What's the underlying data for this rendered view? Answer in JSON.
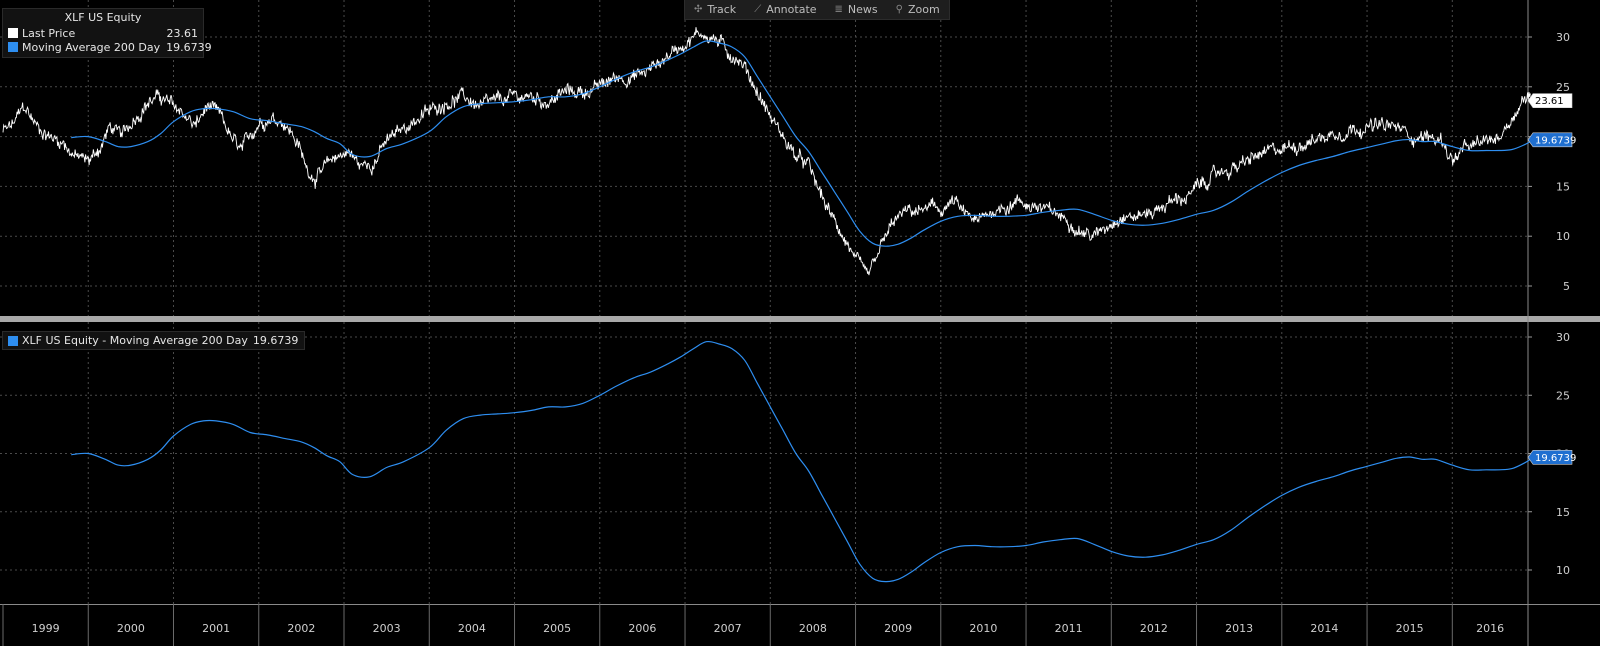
{
  "toolbar": {
    "items": [
      {
        "label": "Track",
        "icon": "crosshair-icon",
        "glyph": "✣"
      },
      {
        "label": "Annotate",
        "icon": "pencil-icon",
        "glyph": "⟋"
      },
      {
        "label": "News",
        "icon": "news-icon",
        "glyph": "≣"
      },
      {
        "label": "Zoom",
        "icon": "magnifier-icon",
        "glyph": "⚲"
      }
    ]
  },
  "legend_top": {
    "title": "XLF US Equity",
    "rows": [
      {
        "name": "Last Price",
        "value": "23.61",
        "color": "#ffffff"
      },
      {
        "name": "Moving Average 200 Day",
        "value": "19.6739",
        "color": "#2e8ef0"
      }
    ]
  },
  "legend_bottom": {
    "name": "XLF US Equity - Moving Average 200 Day",
    "value": "19.6739",
    "color": "#2e8ef0"
  },
  "colors": {
    "price": "#ffffff",
    "ma": "#2e8ef0",
    "grid": "#4a4a4a",
    "background": "#000000"
  },
  "chart_data": [
    {
      "type": "line",
      "panel": "top",
      "x_unit": "year",
      "x_ticks": [
        "1999",
        "2000",
        "2001",
        "2002",
        "2003",
        "2004",
        "2005",
        "2006",
        "2007",
        "2008",
        "2009",
        "2010",
        "2011",
        "2012",
        "2013",
        "2014",
        "2015",
        "2016"
      ],
      "xlim": [
        1999.0,
        2016.97
      ],
      "y_ticks": [
        5,
        10,
        15,
        20,
        25,
        30
      ],
      "ylim": [
        2.5,
        33
      ],
      "grid": true,
      "last_value_tags": [
        {
          "value": "23.61",
          "series": "Last Price"
        },
        {
          "value": "19.6739",
          "series": "Moving Average 200 Day"
        }
      ],
      "series": [
        {
          "name": "Last Price",
          "color": "#ffffff",
          "style": "noisy",
          "x": [
            1999.0,
            1999.1,
            1999.25,
            1999.4,
            1999.55,
            1999.7,
            1999.85,
            2000.0,
            2000.15,
            2000.25,
            2000.4,
            2000.55,
            2000.7,
            2000.85,
            2001.0,
            2001.1,
            2001.25,
            2001.4,
            2001.55,
            2001.7,
            2001.8,
            2002.0,
            2002.15,
            2002.3,
            2002.45,
            2002.55,
            2002.65,
            2002.75,
            2002.9,
            2003.05,
            2003.2,
            2003.35,
            2003.5,
            2003.65,
            2003.8,
            2004.0,
            2004.2,
            2004.4,
            2004.6,
            2004.8,
            2005.0,
            2005.2,
            2005.4,
            2005.6,
            2005.8,
            2006.0,
            2006.2,
            2006.4,
            2006.55,
            2006.7,
            2006.85,
            2007.0,
            2007.1,
            2007.2,
            2007.3,
            2007.4,
            2007.5,
            2007.6,
            2007.7,
            2007.85,
            2008.0,
            2008.15,
            2008.3,
            2008.45,
            2008.6,
            2008.75,
            2008.85,
            2008.95,
            2009.05,
            2009.15,
            2009.3,
            2009.45,
            2009.6,
            2009.75,
            2009.9,
            2010.0,
            2010.15,
            2010.3,
            2010.45,
            2010.6,
            2010.75,
            2010.9,
            2011.1,
            2011.3,
            2011.5,
            2011.65,
            2011.8,
            2011.95,
            2012.1,
            2012.3,
            2012.5,
            2012.7,
            2012.9,
            2013.1,
            2013.3,
            2013.5,
            2013.7,
            2013.9,
            2014.1,
            2014.3,
            2014.5,
            2014.7,
            2014.9,
            2015.1,
            2015.3,
            2015.45,
            2015.55,
            2015.7,
            2015.9,
            2016.0,
            2016.1,
            2016.25,
            2016.4,
            2016.55,
            2016.7,
            2016.78,
            2016.84,
            2016.88,
            2016.92
          ],
          "y": [
            20.5,
            21.0,
            23.0,
            21.0,
            20.0,
            19.5,
            18.0,
            17.5,
            19.0,
            21.0,
            20.0,
            22.0,
            23.5,
            24.0,
            23.0,
            22.5,
            21.0,
            23.0,
            22.0,
            19.5,
            18.5,
            21.5,
            22.0,
            21.5,
            19.5,
            17.0,
            16.0,
            16.5,
            18.0,
            18.5,
            17.0,
            17.5,
            19.5,
            20.5,
            21.5,
            22.5,
            23.5,
            24.0,
            23.0,
            23.5,
            24.0,
            24.0,
            23.5,
            24.5,
            24.5,
            25.0,
            26.0,
            26.0,
            26.5,
            27.5,
            28.5,
            29.5,
            30.0,
            30.5,
            30.0,
            29.5,
            28.5,
            28.0,
            27.0,
            24.5,
            22.0,
            20.0,
            18.0,
            17.0,
            14.0,
            11.5,
            10.0,
            8.5,
            7.0,
            6.0,
            9.0,
            11.5,
            12.5,
            12.5,
            13.0,
            12.5,
            13.5,
            12.0,
            11.5,
            12.5,
            13.0,
            13.5,
            13.0,
            12.5,
            11.5,
            10.5,
            10.0,
            11.0,
            12.0,
            12.0,
            12.5,
            13.5,
            14.0,
            15.5,
            16.5,
            17.0,
            18.0,
            18.5,
            19.0,
            19.5,
            20.0,
            20.5,
            21.0,
            21.0,
            21.0,
            20.5,
            20.0,
            20.0,
            19.5,
            17.5,
            18.5,
            19.0,
            19.5,
            20.0,
            22.0,
            23.0,
            24.0,
            23.8,
            23.61
          ]
        },
        {
          "name": "Moving Average 200 Day",
          "color": "#2e8ef0",
          "style": "smooth",
          "x": [
            1999.8,
            2000.0,
            2000.2,
            2000.35,
            2000.5,
            2000.7,
            2000.85,
            2001.0,
            2001.2,
            2001.35,
            2001.5,
            2001.7,
            2001.9,
            2002.1,
            2002.3,
            2002.5,
            2002.65,
            2002.8,
            2002.95,
            2003.1,
            2003.3,
            2003.5,
            2003.7,
            2004.0,
            2004.2,
            2004.4,
            2004.6,
            2004.8,
            2005.0,
            2005.2,
            2005.4,
            2005.6,
            2005.8,
            2006.0,
            2006.2,
            2006.4,
            2006.6,
            2006.8,
            2006.95,
            2007.1,
            2007.25,
            2007.4,
            2007.55,
            2007.7,
            2007.85,
            2008.0,
            2008.15,
            2008.3,
            2008.45,
            2008.6,
            2008.75,
            2008.9,
            2009.05,
            2009.2,
            2009.35,
            2009.5,
            2009.65,
            2009.8,
            2010.0,
            2010.2,
            2010.4,
            2010.6,
            2010.8,
            2011.0,
            2011.2,
            2011.4,
            2011.6,
            2011.8,
            2012.0,
            2012.2,
            2012.4,
            2012.6,
            2012.8,
            2013.0,
            2013.2,
            2013.4,
            2013.6,
            2013.8,
            2014.0,
            2014.2,
            2014.4,
            2014.6,
            2014.8,
            2015.0,
            2015.2,
            2015.35,
            2015.5,
            2015.65,
            2015.8,
            2016.0,
            2016.2,
            2016.4,
            2016.55,
            2016.7,
            2016.85,
            2016.95
          ],
          "y": [
            19.9,
            20.0,
            19.5,
            19.0,
            19.0,
            19.5,
            20.3,
            21.5,
            22.5,
            22.8,
            22.8,
            22.5,
            21.8,
            21.6,
            21.3,
            21.0,
            20.5,
            19.8,
            19.3,
            18.2,
            18.0,
            18.8,
            19.3,
            20.5,
            22.0,
            23.0,
            23.3,
            23.4,
            23.5,
            23.7,
            24.0,
            24.0,
            24.3,
            25.0,
            25.8,
            26.5,
            27.0,
            27.7,
            28.3,
            29.0,
            29.6,
            29.4,
            29.0,
            28.0,
            26.0,
            24.0,
            22.0,
            20.0,
            18.5,
            16.5,
            14.5,
            12.5,
            10.5,
            9.3,
            9.0,
            9.2,
            9.8,
            10.6,
            11.5,
            12.0,
            12.1,
            12.0,
            12.0,
            12.1,
            12.4,
            12.6,
            12.7,
            12.2,
            11.6,
            11.2,
            11.1,
            11.3,
            11.7,
            12.2,
            12.6,
            13.4,
            14.5,
            15.5,
            16.4,
            17.1,
            17.6,
            18.0,
            18.5,
            18.9,
            19.3,
            19.6,
            19.7,
            19.5,
            19.5,
            19.0,
            18.6,
            18.6,
            18.6,
            18.7,
            19.2,
            19.6739
          ]
        }
      ]
    },
    {
      "type": "line",
      "panel": "bottom",
      "x_unit": "year",
      "xlim": [
        1999.0,
        2016.97
      ],
      "y_ticks": [
        10,
        15,
        20,
        25,
        30
      ],
      "ylim": [
        7,
        31.3
      ],
      "grid": true,
      "last_value_tags": [
        {
          "value": "19.6739",
          "series": "XLF US Equity - Moving Average 200 Day"
        }
      ],
      "series": [
        {
          "name": "XLF US Equity - Moving Average 200 Day",
          "color": "#2e8ef0",
          "style": "smooth",
          "same_as": "Moving Average 200 Day"
        }
      ]
    }
  ]
}
